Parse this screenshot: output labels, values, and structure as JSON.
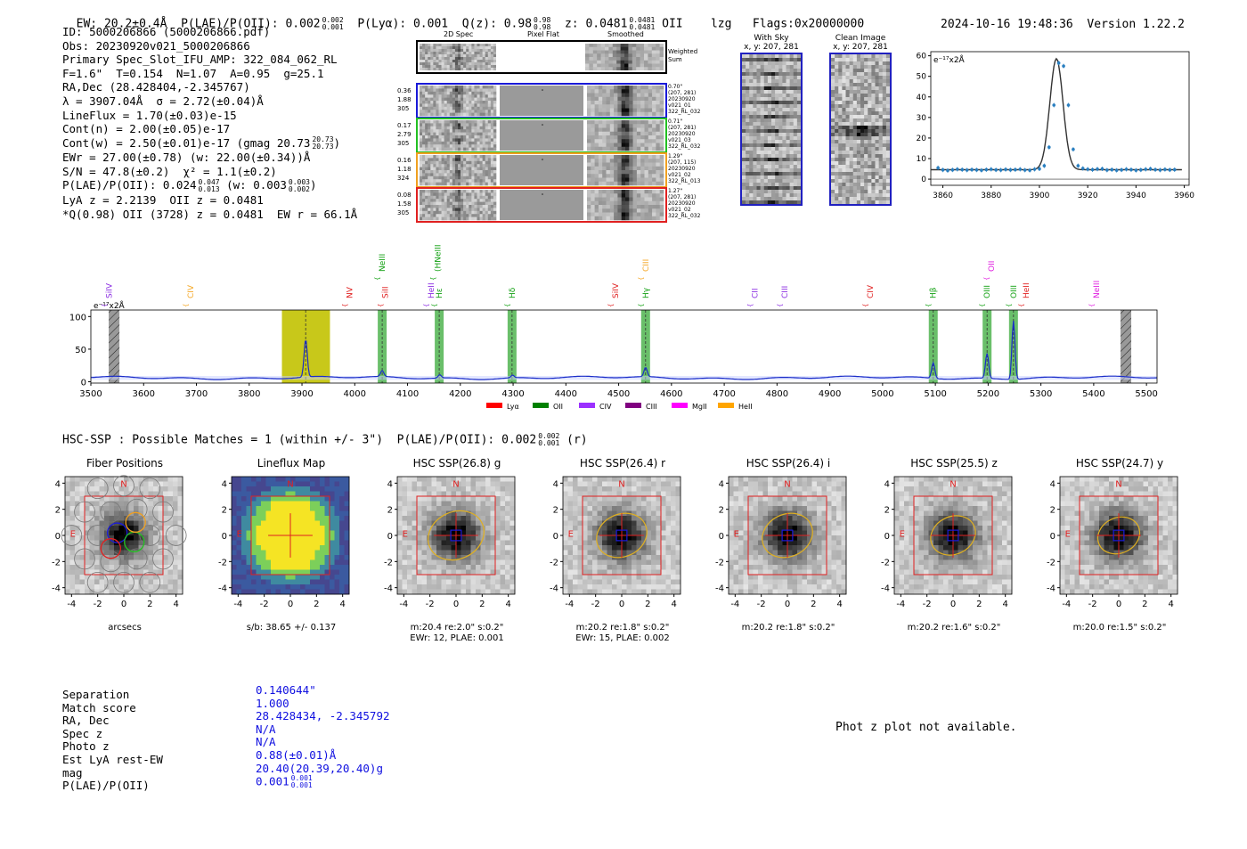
{
  "header": {
    "ew": "EW: 20.2±0.4Å",
    "plae_label": "P(LAE)/P(OII): 0.002",
    "plae_hi": "0.002",
    "plae_lo": "0.001",
    "plya": "P(Lyα): 0.001",
    "qz_label": "Q(z): 0.98",
    "qz_hi": "0.98",
    "qz_lo": "0.98",
    "z_label": "z: 0.0481",
    "z_hi": "0.0481",
    "z_lo": "0.0481",
    "z_line": "OII",
    "lzg": "lzg",
    "flags": "Flags:0x20000000",
    "datetime": "2024-10-16 19:48:36",
    "version": "Version 1.22.2"
  },
  "info": {
    "id": "ID: 5000206866 (5000206866.pdf)",
    "obs": "Obs: 20230920v021_5000206866",
    "primary": "Primary Spec_Slot_IFU_AMP: 322_084_062_RL",
    "params": "F=1.6\"  T=0.154  N=1.07  A=0.95  g=25.1",
    "radec": "RA,Dec (28.428404,-2.345767)",
    "lambda": "λ = 3907.04Å  σ = 2.72(±0.04)Å",
    "lineflux": "LineFlux = 1.70(±0.03)e-15",
    "contn": "Cont(n) = 2.00(±0.05)e-17",
    "contw": "Cont(w) = 2.50(±0.01)e-17 (gmag 20.73",
    "contw_hi": "20.73",
    "contw_lo": "20.73",
    "contw_end": ")",
    "ewr": "EWr = 27.00(±0.78) (w: 22.00(±0.34))Å",
    "sn": "S/N = 47.8(±0.2)  χ² = 1.1(±0.2)",
    "plae": "P(LAE)/P(OII): 0.024",
    "plae_hi": "0.047",
    "plae_lo": "0.013",
    "plae_w": " (w: 0.003",
    "plae_w_hi": "0.003",
    "plae_w_lo": "0.002",
    "plae_w_end": ")",
    "lya": "LyA z = 2.2139  OII z = 0.0481",
    "q": "*Q(0.98) OII (3728) z = 0.0481  EW r = 66.1Å"
  },
  "cutouts": {
    "col_titles": [
      "2D Spec",
      "Pixel Flat",
      "Smoothed"
    ],
    "weighted_sum": "Weighted Sum",
    "rows": [
      {
        "left": [
          "0.36",
          "1.88",
          "305"
        ],
        "right": [
          "0.70\"",
          "(207, 281)",
          "20230920",
          "v021_01",
          "322_RL_032"
        ],
        "color": "#1a1ad8"
      },
      {
        "left": [
          "0.17",
          "2.79",
          "305"
        ],
        "right": [
          "0.71\"",
          "(207, 281)",
          "20230920",
          "v021_03",
          "322_RL_032"
        ],
        "color": "#22c022"
      },
      {
        "left": [
          "0.16",
          "1.18",
          "324"
        ],
        "right": [
          "1.29\"",
          "(207, 115)",
          "20230920",
          "v021_02",
          "322_RL_013"
        ],
        "color": "#f0a020"
      },
      {
        "left": [
          "0.08",
          "1.58",
          "305"
        ],
        "right": [
          "1.27\"",
          "(207, 281)",
          "20230920",
          "v021_02",
          "322_RL_032"
        ],
        "color": "#e02020"
      }
    ],
    "with_sky": "With Sky",
    "with_sky_xy": "x, y: 207, 281",
    "clean": "Clean Image",
    "clean_xy": "x, y: 207, 281"
  },
  "line_fit_chart": {
    "type": "scatter",
    "ylabel_unit": "e⁻¹⁷x2Å",
    "xlim": [
      3855,
      3962
    ],
    "ylim": [
      -3,
      62
    ],
    "xticks": [
      3860,
      3880,
      3900,
      3920,
      3940,
      3960
    ],
    "yticks": [
      0,
      10,
      20,
      30,
      40,
      50,
      60
    ],
    "points_x": [
      3858,
      3860,
      3862,
      3864,
      3866,
      3868,
      3870,
      3872,
      3874,
      3876,
      3878,
      3880,
      3882,
      3884,
      3886,
      3888,
      3890,
      3892,
      3894,
      3896,
      3898,
      3900,
      3902,
      3904,
      3906,
      3908,
      3910,
      3912,
      3914,
      3916,
      3918,
      3920,
      3922,
      3924,
      3926,
      3928,
      3930,
      3932,
      3934,
      3936,
      3938,
      3940,
      3942,
      3944,
      3946,
      3948,
      3950,
      3952,
      3954,
      3956
    ],
    "points_y": [
      5.5,
      4.5,
      4.2,
      4.5,
      4.8,
      4.6,
      4.4,
      4.6,
      4.5,
      4.3,
      4.6,
      4.8,
      4.5,
      4.4,
      4.7,
      4.5,
      4.6,
      4.8,
      4.4,
      4.3,
      4.8,
      5.0,
      6.5,
      15.5,
      36.0,
      56.5,
      55.0,
      36.0,
      14.5,
      6.5,
      5.2,
      4.8,
      4.6,
      4.9,
      5.0,
      4.4,
      4.6,
      4.3,
      4.5,
      4.8,
      4.6,
      4.3,
      4.5,
      4.8,
      5.0,
      4.6,
      4.4,
      4.7,
      4.5,
      4.6
    ],
    "fit_center": 3907.04,
    "fit_sigma": 2.72,
    "fit_peak": 54,
    "fit_base": 4.6
  },
  "spectrum_chart": {
    "type": "line",
    "ylabel_unit": "e⁻¹⁷x2Å",
    "xlim": [
      3500,
      5520
    ],
    "ylim": [
      -2,
      110
    ],
    "xticks": [
      3500,
      3600,
      3700,
      3800,
      3900,
      4000,
      4100,
      4200,
      4300,
      4400,
      4500,
      4600,
      4700,
      4800,
      4900,
      5000,
      5100,
      5200,
      5300,
      5400,
      5500
    ],
    "yticks": [
      0,
      50,
      100
    ],
    "baseline": 6,
    "peaks": [
      {
        "x": 3907,
        "height": 58,
        "sigma": 3
      },
      {
        "x": 4052,
        "height": 9,
        "sigma": 3
      },
      {
        "x": 4161,
        "height": 5,
        "sigma": 3
      },
      {
        "x": 4299,
        "height": 4,
        "sigma": 3
      },
      {
        "x": 4551,
        "height": 14,
        "sigma": 3
      },
      {
        "x": 5096,
        "height": 24,
        "sigma": 3
      },
      {
        "x": 5198,
        "height": 38,
        "sigma": 3
      },
      {
        "x": 5248,
        "height": 90,
        "sigma": 2.8
      }
    ],
    "highlight_band": [
      3862,
      3953
    ],
    "green_bands": [
      4052,
      4160,
      4298,
      4551,
      5096,
      5198,
      5248
    ],
    "hatched_bands": [
      3544,
      5461
    ],
    "line_labels": [
      {
        "name": "SiIV",
        "x": 3535,
        "color": "#8a2be2",
        "level": "low"
      },
      {
        "name": "CIV",
        "x": 3689,
        "color": "#f5a623",
        "level": "low"
      },
      {
        "name": "NV",
        "x": 3990,
        "color": "#e02020",
        "level": "low"
      },
      {
        "name": "SiII",
        "x": 4058,
        "color": "#e02020",
        "level": "low"
      },
      {
        "name": "NeIII",
        "x": 4052,
        "color": "#11a011",
        "level": "high"
      },
      {
        "name": "HeII",
        "x": 4145,
        "color": "#8a2be2",
        "level": "low"
      },
      {
        "name": "(HNeIII",
        "x": 4157,
        "color": "#11a011",
        "level": "high"
      },
      {
        "name": "Hε",
        "x": 4160,
        "color": "#11a011",
        "level": "low"
      },
      {
        "name": "Hδ",
        "x": 4298,
        "color": "#11a011",
        "level": "low"
      },
      {
        "name": "SiIV",
        "x": 4494,
        "color": "#e02020",
        "level": "low"
      },
      {
        "name": "CIII",
        "x": 4551,
        "color": "#f5a623",
        "level": "high"
      },
      {
        "name": "Hγ",
        "x": 4551,
        "color": "#11a011",
        "level": "low"
      },
      {
        "name": "CII",
        "x": 4758,
        "color": "#8a2be2",
        "level": "low"
      },
      {
        "name": "CIII",
        "x": 4815,
        "color": "#8a2be2",
        "level": "low"
      },
      {
        "name": "CIV",
        "x": 4977,
        "color": "#e02020",
        "level": "low"
      },
      {
        "name": "Hβ",
        "x": 5096,
        "color": "#11a011",
        "level": "low"
      },
      {
        "name": "OII",
        "x": 5206,
        "color": "#e020e0",
        "level": "high"
      },
      {
        "name": "OIII",
        "x": 5198,
        "color": "#11a011",
        "level": "low"
      },
      {
        "name": "OIII",
        "x": 5248,
        "color": "#11a011",
        "level": "low"
      },
      {
        "name": "HeII",
        "x": 5272,
        "color": "#e02020",
        "level": "low"
      },
      {
        "name": "NeIII",
        "x": 5405,
        "color": "#e020e0",
        "level": "low"
      }
    ],
    "legend": [
      {
        "name": "Lyα",
        "color": "#ff0000"
      },
      {
        "name": "OII",
        "color": "#008000"
      },
      {
        "name": "CIV",
        "color": "#9b30ff"
      },
      {
        "name": "CIII",
        "color": "#800080"
      },
      {
        "name": "MgII",
        "color": "#ff00ff"
      },
      {
        "name": "HeII",
        "color": "#ffa500"
      }
    ]
  },
  "hsc": {
    "title": "HSC-SSP : Possible Matches = 1 (within +/- 3\")  P(LAE)/P(OII): 0.002",
    "title_hi": "0.002",
    "title_lo": "0.001",
    "title_end": "(r)",
    "panels": [
      {
        "title": "Fiber Positions",
        "caption": [
          "arcsecs"
        ],
        "kind": "fiber"
      },
      {
        "title": "Lineflux Map",
        "caption": [
          "s/b: 38.65 +/- 0.137"
        ],
        "kind": "flux"
      },
      {
        "title": "HSC SSP(26.8) g",
        "caption": [
          "m:20.4  re:2.0\"  s:0.2\"",
          "EWr: 12, PLAE: 0.001"
        ],
        "kind": "img"
      },
      {
        "title": "HSC SSP(26.4) r",
        "caption": [
          "m:20.2  re:1.8\"  s:0.2\"",
          "EWr: 15, PLAE: 0.002"
        ],
        "kind": "img"
      },
      {
        "title": "HSC SSP(26.4) i",
        "caption": [
          "m:20.2  re:1.8\"  s:0.2\""
        ],
        "kind": "img"
      },
      {
        "title": "HSC SSP(25.5) z",
        "caption": [
          "m:20.2  re:1.6\"  s:0.2\""
        ],
        "kind": "img"
      },
      {
        "title": "HSC SSP(24.7) y",
        "caption": [
          "m:20.0  re:1.5\"  s:0.2\""
        ],
        "kind": "img"
      }
    ],
    "axis_ticks": [
      "-4",
      "-2",
      "0",
      "2",
      "4"
    ],
    "n_label": "N",
    "e_label": "E"
  },
  "match_table": {
    "labels": [
      "Separation",
      "Match score",
      "RA, Dec",
      "Spec z",
      "Photo z",
      "Est LyA rest-EW",
      "mag",
      "P(LAE)/P(OII)"
    ],
    "values": [
      "0.140644\"",
      "1.000",
      "28.428434, -2.345792",
      "N/A",
      "N/A",
      "0.88(±0.01)Å",
      "20.40(20.39,20.40)g",
      "0.001"
    ],
    "plae_hi": "0.001",
    "plae_lo": "0.001",
    "phot_z_msg": "Phot z plot not available."
  }
}
